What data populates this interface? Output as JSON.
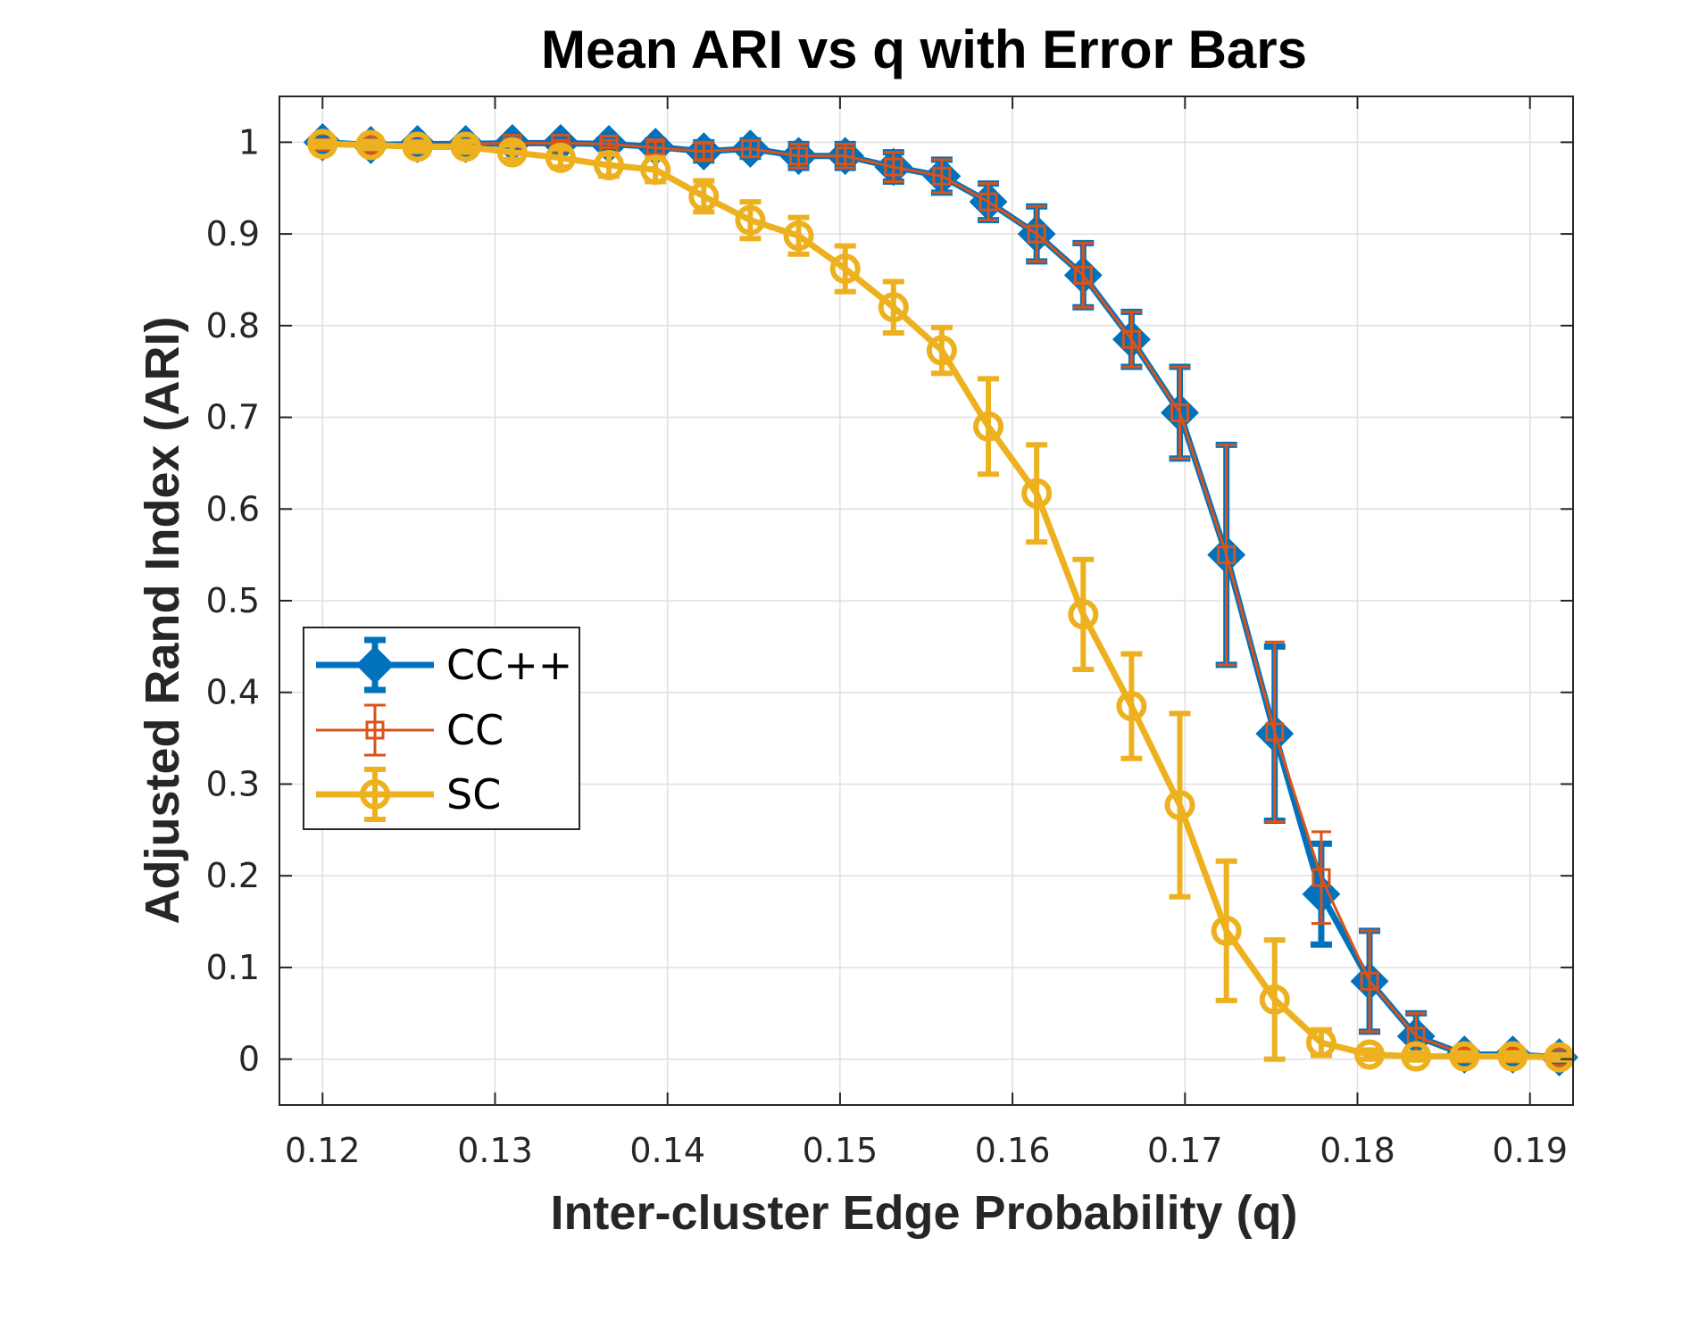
{
  "chart_data": {
    "type": "line",
    "title": "Mean ARI vs q with Error Bars",
    "xlabel": "Inter-cluster Edge Probability (q)",
    "ylabel": "Adjusted Rand Index (ARI)",
    "xlim": [
      0.1175,
      0.1925
    ],
    "ylim": [
      -0.05,
      1.05
    ],
    "xticks": [
      "0.12",
      "0.13",
      "0.14",
      "0.15",
      "0.16",
      "0.17",
      "0.18",
      "0.19"
    ],
    "xtick_values": [
      0.12,
      0.13,
      0.14,
      0.15,
      0.16,
      0.17,
      0.18,
      0.19
    ],
    "yticks": [
      "0",
      "0.1",
      "0.2",
      "0.3",
      "0.4",
      "0.5",
      "0.6",
      "0.7",
      "0.8",
      "0.9",
      "1"
    ],
    "ytick_values": [
      0,
      0.1,
      0.2,
      0.3,
      0.4,
      0.5,
      0.6,
      0.7,
      0.8,
      0.9,
      1.0
    ],
    "grid": true,
    "legend_position": "middle-left",
    "x": [
      0.12,
      0.1228,
      0.1255,
      0.1283,
      0.131,
      0.1338,
      0.1366,
      0.1393,
      0.1421,
      0.1448,
      0.1476,
      0.1503,
      0.1531,
      0.1559,
      0.1586,
      0.1614,
      0.1641,
      0.1669,
      0.1697,
      0.1724,
      0.1752,
      0.1779,
      0.1807,
      0.1834,
      0.1862,
      0.189,
      0.1917
    ],
    "series": [
      {
        "name": "CC++",
        "color": "#0072BD",
        "marker": "diamond",
        "values": [
          1.0,
          0.997,
          0.998,
          0.998,
          0.999,
          0.999,
          0.998,
          0.995,
          0.99,
          0.993,
          0.985,
          0.985,
          0.973,
          0.963,
          0.935,
          0.9,
          0.855,
          0.785,
          0.705,
          0.55,
          0.355,
          0.18,
          0.085,
          0.025,
          0.005,
          0.005,
          0.002
        ],
        "errors": [
          0.003,
          0.005,
          0.004,
          0.004,
          0.003,
          0.003,
          0.004,
          0.007,
          0.01,
          0.009,
          0.013,
          0.013,
          0.016,
          0.018,
          0.02,
          0.03,
          0.035,
          0.03,
          0.05,
          0.12,
          0.095,
          0.055,
          0.055,
          0.025,
          0.006,
          0.006,
          0.004
        ]
      },
      {
        "name": "CC",
        "color": "#D95319",
        "marker": "square",
        "values": [
          1.0,
          0.997,
          0.998,
          0.998,
          0.999,
          0.999,
          0.998,
          0.994,
          0.99,
          0.993,
          0.985,
          0.985,
          0.973,
          0.963,
          0.935,
          0.9,
          0.855,
          0.785,
          0.705,
          0.55,
          0.357,
          0.198,
          0.085,
          0.025,
          0.005,
          0.005,
          0.002
        ],
        "errors": [
          0.003,
          0.005,
          0.004,
          0.004,
          0.003,
          0.003,
          0.004,
          0.007,
          0.01,
          0.009,
          0.013,
          0.013,
          0.016,
          0.018,
          0.02,
          0.03,
          0.035,
          0.03,
          0.05,
          0.12,
          0.098,
          0.05,
          0.055,
          0.025,
          0.006,
          0.006,
          0.004
        ]
      },
      {
        "name": "SC",
        "color": "#EDB120",
        "marker": "circle",
        "values": [
          0.998,
          0.997,
          0.995,
          0.995,
          0.989,
          0.983,
          0.975,
          0.97,
          0.941,
          0.915,
          0.898,
          0.862,
          0.82,
          0.773,
          0.69,
          0.617,
          0.485,
          0.385,
          0.277,
          0.14,
          0.065,
          0.018,
          0.005,
          0.003,
          0.003,
          0.003,
          0.002
        ],
        "errors": [
          0.003,
          0.004,
          0.005,
          0.006,
          0.008,
          0.01,
          0.012,
          0.013,
          0.017,
          0.02,
          0.02,
          0.025,
          0.028,
          0.025,
          0.052,
          0.053,
          0.06,
          0.057,
          0.1,
          0.076,
          0.065,
          0.014,
          0.005,
          0.004,
          0.004,
          0.004,
          0.003
        ]
      }
    ]
  }
}
